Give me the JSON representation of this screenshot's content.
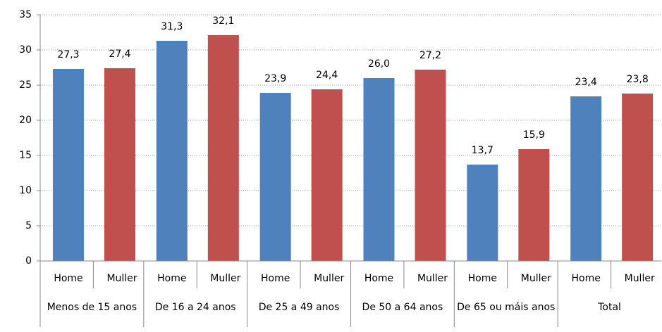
{
  "chart_data": {
    "type": "bar",
    "categories": [
      "Menos de 15 anos",
      "De 16 a 24 anos",
      "De 25 a 49 anos",
      "De 50 a 64 anos",
      "De 65 ou máis anos",
      "Total"
    ],
    "series": [
      {
        "name": "Home",
        "color": "#4f81bd",
        "values": [
          27.3,
          31.3,
          23.9,
          26.0,
          13.7,
          23.4
        ],
        "value_labels": [
          "27,3",
          "31,3",
          "23,9",
          "26,0",
          "13,7",
          "23,4"
        ]
      },
      {
        "name": "Muller",
        "color": "#c0504d",
        "values": [
          27.4,
          32.1,
          24.4,
          27.2,
          15.9,
          23.8
        ],
        "value_labels": [
          "27,4",
          "32,1",
          "24,4",
          "27,2",
          "15,9",
          "23,8"
        ]
      }
    ],
    "ylim": [
      0,
      35
    ],
    "yticks": [
      0,
      5,
      10,
      15,
      20,
      25,
      30,
      35
    ],
    "grid": true
  }
}
